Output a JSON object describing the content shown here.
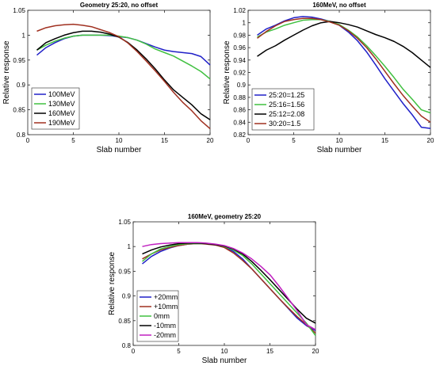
{
  "chart_data": [
    {
      "type": "line",
      "title": "Geometry 25:20, no offset",
      "xlabel": "Slab number",
      "ylabel": "Relative response",
      "xlim": [
        0,
        20
      ],
      "ylim": [
        0.8,
        1.05
      ],
      "xticks": [
        "0",
        "5",
        "10",
        "15",
        "20"
      ],
      "yticks": [
        "0.8",
        "0.85",
        "0.9",
        "0.95",
        "1",
        "1.05"
      ],
      "legend_position": "bottom-left",
      "series": [
        {
          "name": "100MeV",
          "color": "#2020c8",
          "x": [
            1,
            2,
            3,
            4,
            5,
            6,
            7,
            8,
            9,
            10,
            11,
            12,
            13,
            14,
            15,
            16,
            17,
            18,
            19,
            20
          ],
          "y": [
            0.96,
            0.975,
            0.985,
            0.993,
            0.998,
            1.0,
            1.0,
            1.0,
            0.999,
            0.997,
            0.995,
            0.99,
            0.983,
            0.976,
            0.97,
            0.967,
            0.965,
            0.963,
            0.957,
            0.94
          ]
        },
        {
          "name": "130MeV",
          "color": "#40c040",
          "x": [
            1,
            2,
            3,
            4,
            5,
            6,
            7,
            8,
            9,
            10,
            11,
            12,
            13,
            14,
            15,
            16,
            17,
            18,
            19,
            20
          ],
          "y": [
            0.97,
            0.98,
            0.988,
            0.994,
            0.998,
            1.0,
            1.0,
            1.0,
            1.0,
            0.998,
            0.995,
            0.99,
            0.982,
            0.972,
            0.965,
            0.958,
            0.948,
            0.938,
            0.927,
            0.912
          ]
        },
        {
          "name": "160MeV",
          "color": "#000000",
          "x": [
            1,
            2,
            3,
            4,
            5,
            6,
            7,
            8,
            9,
            10,
            11,
            12,
            13,
            14,
            15,
            16,
            17,
            18,
            19,
            20
          ],
          "y": [
            0.97,
            0.985,
            0.993,
            1.0,
            1.005,
            1.008,
            1.008,
            1.006,
            1.002,
            0.996,
            0.985,
            0.97,
            0.952,
            0.932,
            0.91,
            0.89,
            0.875,
            0.86,
            0.842,
            0.83
          ]
        },
        {
          "name": "190MeV",
          "color": "#a03020",
          "x": [
            1,
            2,
            3,
            4,
            5,
            6,
            7,
            8,
            9,
            10,
            11,
            12,
            13,
            14,
            15,
            16,
            17,
            18,
            19,
            20
          ],
          "y": [
            1.008,
            1.015,
            1.019,
            1.021,
            1.022,
            1.02,
            1.017,
            1.011,
            1.005,
            0.997,
            0.984,
            0.967,
            0.948,
            0.928,
            0.907,
            0.885,
            0.865,
            0.848,
            0.828,
            0.812
          ]
        }
      ]
    },
    {
      "type": "line",
      "title": "160MeV, no offset",
      "xlabel": "Slab number",
      "ylabel": "Relative response",
      "xlim": [
        0,
        20
      ],
      "ylim": [
        0.82,
        1.02
      ],
      "xticks": [
        "0",
        "5",
        "10",
        "15",
        "20"
      ],
      "yticks": [
        "0.82",
        "0.84",
        "0.86",
        "0.88",
        "0.9",
        "0.92",
        "0.94",
        "0.96",
        "0.98",
        "1",
        "1.02"
      ],
      "legend_position": "bottom-left",
      "series": [
        {
          "name": "25:20=1.25",
          "color": "#2020c8",
          "x": [
            1,
            2,
            3,
            4,
            5,
            6,
            7,
            8,
            9,
            10,
            11,
            12,
            13,
            14,
            15,
            16,
            17,
            18,
            19,
            20
          ],
          "y": [
            0.98,
            0.99,
            0.996,
            1.003,
            1.008,
            1.01,
            1.009,
            1.006,
            1.002,
            0.996,
            0.985,
            0.971,
            0.953,
            0.932,
            0.91,
            0.89,
            0.87,
            0.852,
            0.832,
            0.83
          ]
        },
        {
          "name": "25:16=1.56",
          "color": "#40c040",
          "x": [
            1,
            2,
            3,
            4,
            5,
            6,
            7,
            8,
            9,
            10,
            11,
            12,
            13,
            14,
            15,
            16,
            17,
            18,
            19,
            20
          ],
          "y": [
            0.977,
            0.985,
            0.99,
            0.996,
            1.0,
            1.004,
            1.005,
            1.005,
            1.002,
            0.997,
            0.988,
            0.977,
            0.963,
            0.947,
            0.93,
            0.912,
            0.893,
            0.877,
            0.86,
            0.855
          ]
        },
        {
          "name": "25:12=2.08",
          "color": "#000000",
          "x": [
            1,
            2,
            3,
            4,
            5,
            6,
            7,
            8,
            9,
            10,
            11,
            12,
            13,
            14,
            15,
            16,
            17,
            18,
            19,
            20
          ],
          "y": [
            0.946,
            0.956,
            0.963,
            0.972,
            0.98,
            0.988,
            0.995,
            1.0,
            1.002,
            1.0,
            0.997,
            0.993,
            0.987,
            0.981,
            0.976,
            0.97,
            0.962,
            0.952,
            0.94,
            0.928
          ]
        },
        {
          "name": "30:20=1.5",
          "color": "#a03020",
          "x": [
            1,
            2,
            3,
            4,
            5,
            6,
            7,
            8,
            9,
            10,
            11,
            12,
            13,
            14,
            15,
            16,
            17,
            18,
            19,
            20
          ],
          "y": [
            0.975,
            0.986,
            0.995,
            1.002,
            1.005,
            1.007,
            1.007,
            1.005,
            1.001,
            0.996,
            0.987,
            0.975,
            0.96,
            0.942,
            0.922,
            0.902,
            0.883,
            0.866,
            0.85,
            0.84
          ]
        }
      ]
    },
    {
      "type": "line",
      "title": "160MeV, geometry 25:20",
      "xlabel": "Slab number",
      "ylabel": "Relative response",
      "xlim": [
        0,
        20
      ],
      "ylim": [
        0.8,
        1.05
      ],
      "xticks": [
        "0",
        "5",
        "10",
        "15",
        "20"
      ],
      "yticks": [
        "0.8",
        "0.85",
        "0.9",
        "0.95",
        "1",
        "1.05"
      ],
      "legend_position": "bottom-left",
      "series": [
        {
          "name": "+20mm",
          "color": "#2020c8",
          "x": [
            1,
            2,
            3,
            4,
            5,
            6,
            7,
            8,
            9,
            10,
            11,
            12,
            13,
            14,
            15,
            16,
            17,
            18,
            19,
            20
          ],
          "y": [
            0.965,
            0.98,
            0.99,
            0.997,
            1.002,
            1.005,
            1.006,
            1.006,
            1.004,
            1.0,
            0.99,
            0.975,
            0.955,
            0.935,
            0.915,
            0.895,
            0.875,
            0.855,
            0.84,
            0.83
          ]
        },
        {
          "name": "+10mm",
          "color": "#a03020",
          "x": [
            1,
            2,
            3,
            4,
            5,
            6,
            7,
            8,
            9,
            10,
            11,
            12,
            13,
            14,
            15,
            16,
            17,
            18,
            19,
            20
          ],
          "y": [
            0.975,
            0.985,
            0.993,
            0.998,
            1.002,
            1.005,
            1.006,
            1.005,
            1.003,
            0.998,
            0.987,
            0.972,
            0.955,
            0.935,
            0.915,
            0.895,
            0.876,
            0.858,
            0.842,
            0.825
          ]
        },
        {
          "name": "0mm",
          "color": "#40c040",
          "x": [
            1,
            2,
            3,
            4,
            5,
            6,
            7,
            8,
            9,
            10,
            11,
            12,
            13,
            14,
            15,
            16,
            17,
            18,
            19,
            20
          ],
          "y": [
            0.97,
            0.985,
            0.995,
            1.0,
            1.004,
            1.006,
            1.006,
            1.006,
            1.004,
            1.0,
            0.993,
            0.982,
            0.965,
            0.945,
            0.925,
            0.905,
            0.885,
            0.865,
            0.845,
            0.82
          ]
        },
        {
          "name": "-10mm",
          "color": "#000000",
          "x": [
            1,
            2,
            3,
            4,
            5,
            6,
            7,
            8,
            9,
            10,
            11,
            12,
            13,
            14,
            15,
            16,
            17,
            18,
            19,
            20
          ],
          "y": [
            0.985,
            0.993,
            0.999,
            1.003,
            1.006,
            1.007,
            1.007,
            1.006,
            1.004,
            1.001,
            0.995,
            0.985,
            0.97,
            0.952,
            0.933,
            0.913,
            0.893,
            0.873,
            0.855,
            0.845
          ]
        },
        {
          "name": "-20mm",
          "color": "#c020c0",
          "x": [
            1,
            2,
            3,
            4,
            5,
            6,
            7,
            8,
            9,
            10,
            11,
            12,
            13,
            14,
            15,
            16,
            17,
            18,
            19,
            20
          ],
          "y": [
            1.0,
            1.004,
            1.006,
            1.007,
            1.008,
            1.008,
            1.008,
            1.007,
            1.005,
            1.002,
            0.996,
            0.987,
            0.975,
            0.96,
            0.943,
            0.92,
            0.895,
            0.87,
            0.842,
            0.832
          ]
        }
      ]
    }
  ]
}
